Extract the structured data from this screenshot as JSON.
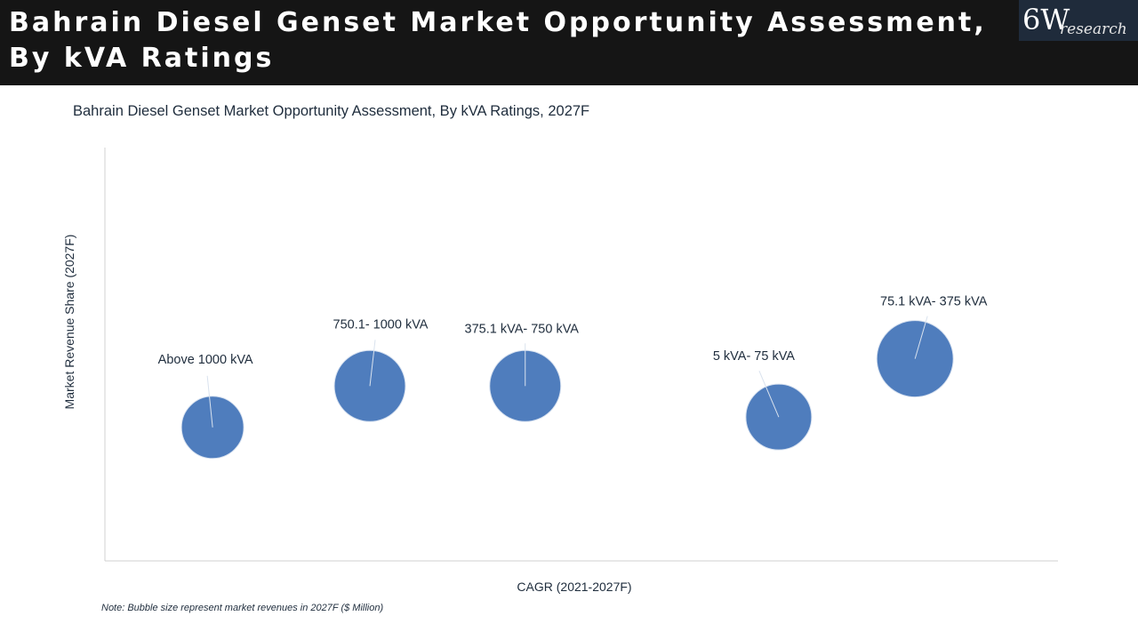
{
  "header": {
    "title_line1": "Bahrain Diesel Genset Market Opportunity Assessment,",
    "title_line2": "By kVA Ratings",
    "logo_main": "6W",
    "logo_sub": "research"
  },
  "chart_data": {
    "type": "bubble",
    "title": "Bahrain Diesel Genset Market Opportunity Assessment, By kVA Ratings, 2027F",
    "xlabel": "CAGR (2021-2027F)",
    "ylabel": "Market Revenue Share (2027F)",
    "xlim": [
      0,
      100
    ],
    "ylim": [
      0,
      100
    ],
    "grid": false,
    "points": [
      {
        "label": "Above 1000 kVA",
        "x": 11.3,
        "y": 32.3,
        "size": 35
      },
      {
        "label": "750.1- 1000 kVA",
        "x": 27.8,
        "y": 42.3,
        "size": 40
      },
      {
        "label": "375.1 kVA- 750 kVA",
        "x": 44.1,
        "y": 42.3,
        "size": 40
      },
      {
        "label": "5 kVA- 75 kVA",
        "x": 70.7,
        "y": 34.8,
        "size": 37
      },
      {
        "label": "75.1 kVA- 375 kVA",
        "x": 85.0,
        "y": 48.9,
        "size": 43
      }
    ],
    "bubble_color": "#4f7dbd",
    "note": "Note: Bubble size represent market revenues in 2027F ($ Million)"
  }
}
